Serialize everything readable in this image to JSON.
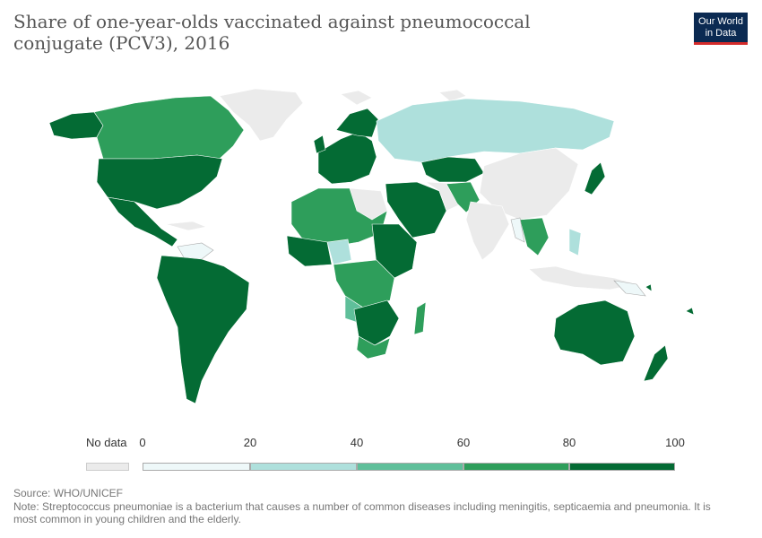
{
  "header": {
    "title": "Share of one-year-olds vaccinated against pneumococcal conjugate (PCV3), 2016",
    "logo_line1": "Our World",
    "logo_line2": "in Data"
  },
  "legend": {
    "no_data_label": "No data",
    "ticks": [
      "0",
      "20",
      "40",
      "60",
      "80",
      "100"
    ],
    "bins": [
      {
        "from": 0,
        "to": 20,
        "color": "#eef8f9"
      },
      {
        "from": 20,
        "to": 40,
        "color": "#aee0dc"
      },
      {
        "from": 40,
        "to": 60,
        "color": "#5fbf9a"
      },
      {
        "from": 60,
        "to": 80,
        "color": "#2e9e5b"
      },
      {
        "from": 80,
        "to": 100,
        "color": "#046b34"
      }
    ],
    "no_data_color": "#ebebeb"
  },
  "footer": {
    "source": "Source: WHO/UNICEF",
    "note": "Note: Streptococcus pneumoniae is a bacterium that causes a number of common diseases including meningitis, septicaemia and pneumonia. It is most common in young children and the elderly."
  },
  "colors": {
    "c0": "#eef8f9",
    "c20": "#aee0dc",
    "c40": "#5fbf9a",
    "c60": "#2e9e5b",
    "c80": "#046b34",
    "nodata": "#ebebeb"
  }
}
